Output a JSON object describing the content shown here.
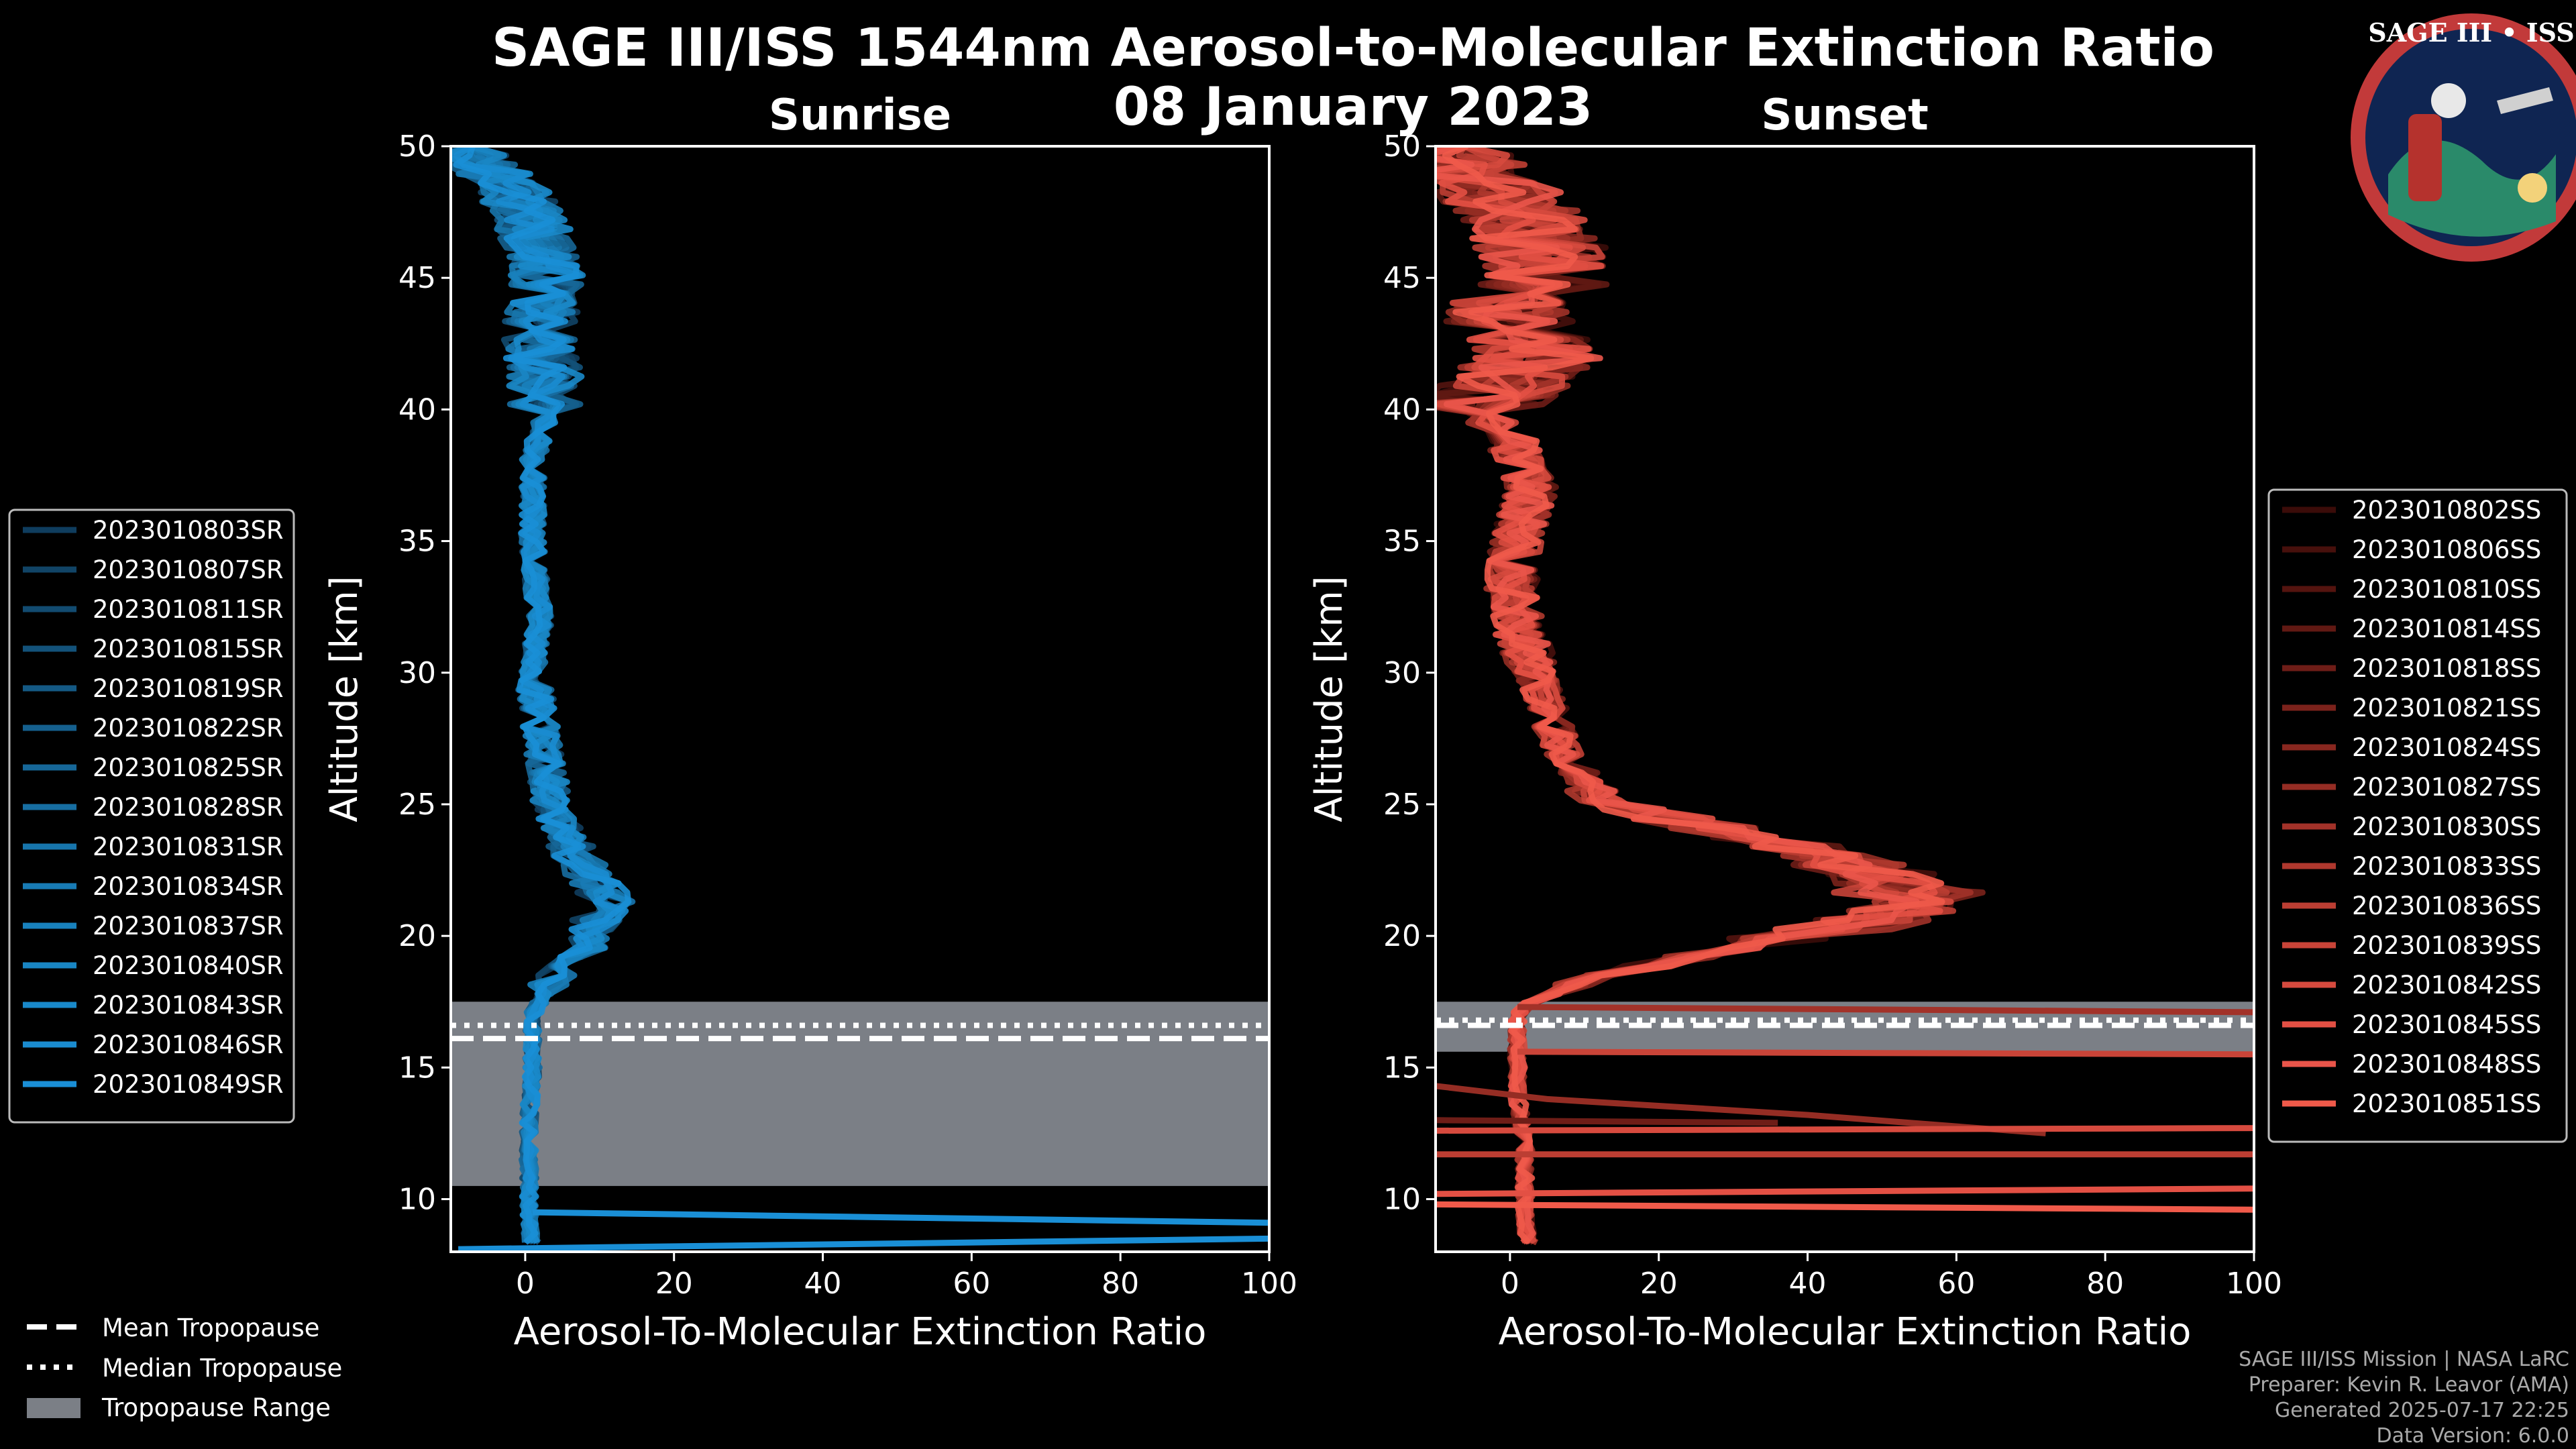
{
  "title": "SAGE III/ISS 1544nm Aerosol-to-Molecular Extinction Ratio",
  "date": "08 January 2023",
  "logo": {
    "text": "SAGE III • ISS"
  },
  "colors": {
    "background": "#000000",
    "sunrise": "#1a8fd6",
    "sunset": "#f05a4a",
    "tropopause_range": "#7b7f86",
    "credit": "#aaaaaa"
  },
  "chart_data": [
    {
      "type": "line",
      "title": "Sunrise",
      "xlabel": "Aerosol-To-Molecular Extinction Ratio",
      "ylabel": "Altitude [km]",
      "xlim": [
        -10,
        100
      ],
      "ylim": [
        8,
        50
      ],
      "xticks": [
        "0",
        "20",
        "40",
        "60",
        "80",
        "100"
      ],
      "yticks": [
        "10",
        "15",
        "20",
        "25",
        "30",
        "35",
        "40",
        "45",
        "50"
      ],
      "tropopause": {
        "mean": 16.1,
        "median": 16.6,
        "range": [
          10.5,
          17.5
        ]
      },
      "base_profile": [
        [
          -9,
          50
        ],
        [
          -2,
          48.5
        ],
        [
          1,
          47
        ],
        [
          3,
          45
        ],
        [
          2,
          43
        ],
        [
          3,
          40
        ],
        [
          1,
          38
        ],
        [
          1,
          35
        ],
        [
          2,
          32
        ],
        [
          1,
          30
        ],
        [
          2,
          28
        ],
        [
          3,
          26
        ],
        [
          4,
          24.5
        ],
        [
          7,
          23
        ],
        [
          10,
          22
        ],
        [
          12,
          21.2
        ],
        [
          9,
          20
        ],
        [
          6,
          19
        ],
        [
          3,
          18
        ],
        [
          1,
          17
        ],
        [
          1,
          16
        ],
        [
          1,
          15
        ],
        [
          0.5,
          13
        ],
        [
          0.5,
          11
        ],
        [
          0.5,
          9.6
        ],
        [
          1,
          8
        ]
      ],
      "series": [
        {
          "name": "2023010803SR",
          "color": "#0f3d5e"
        },
        {
          "name": "2023010807SR",
          "color": "#114466"
        },
        {
          "name": "2023010811SR",
          "color": "#124b70"
        },
        {
          "name": "2023010815SR",
          "color": "#13527a"
        },
        {
          "name": "2023010819SR",
          "color": "#145984"
        },
        {
          "name": "2023010822SR",
          "color": "#15608e"
        },
        {
          "name": "2023010825SR",
          "color": "#166798"
        },
        {
          "name": "2023010828SR",
          "color": "#176ea2"
        },
        {
          "name": "2023010831SR",
          "color": "#1775ac"
        },
        {
          "name": "2023010834SR",
          "color": "#187bb5"
        },
        {
          "name": "2023010837SR",
          "color": "#1881bd"
        },
        {
          "name": "2023010840SR",
          "color": "#1986c4"
        },
        {
          "name": "2023010843SR",
          "color": "#1989ca"
        },
        {
          "name": "2023010846SR",
          "color": "#1a8cd0"
        },
        {
          "name": "2023010849SR",
          "color": "#1a8fd6"
        }
      ],
      "spikes": [
        {
          "pts": [
            [
              1,
              9.5
            ],
            [
              100,
              9.1
            ]
          ],
          "color": "#1a8fd6"
        },
        {
          "pts": [
            [
              -9,
              8.1
            ],
            [
              100,
              8.5
            ]
          ],
          "color": "#1a8fd6"
        }
      ]
    },
    {
      "type": "line",
      "title": "Sunset",
      "xlabel": "Aerosol-To-Molecular Extinction Ratio",
      "ylabel": "Altitude [km]",
      "xlim": [
        -10,
        100
      ],
      "ylim": [
        8,
        50
      ],
      "xticks": [
        "0",
        "20",
        "40",
        "60",
        "80",
        "100"
      ],
      "yticks": [
        "10",
        "15",
        "20",
        "25",
        "30",
        "35",
        "40",
        "45",
        "50"
      ],
      "tropopause": {
        "mean": 16.6,
        "median": 16.8,
        "range": [
          15.6,
          17.5
        ]
      },
      "base_profile": [
        [
          -10,
          50
        ],
        [
          -2,
          48.5
        ],
        [
          3,
          47
        ],
        [
          6,
          45
        ],
        [
          -2,
          44
        ],
        [
          4,
          42
        ],
        [
          -5,
          40
        ],
        [
          0,
          39
        ],
        [
          3,
          37
        ],
        [
          1,
          35
        ],
        [
          0,
          33
        ],
        [
          2,
          31
        ],
        [
          4,
          29.5
        ],
        [
          7,
          27
        ],
        [
          13,
          25
        ],
        [
          30,
          24
        ],
        [
          45,
          23
        ],
        [
          53,
          22
        ],
        [
          57,
          21.5
        ],
        [
          49,
          20.5
        ],
        [
          30,
          19.5
        ],
        [
          12,
          18.5
        ],
        [
          3,
          17.5
        ],
        [
          1,
          17
        ],
        [
          1,
          15.5
        ],
        [
          1,
          14
        ],
        [
          2,
          12
        ],
        [
          2,
          10.5
        ],
        [
          2,
          9
        ],
        [
          3,
          8
        ]
      ],
      "series": [
        {
          "name": "2023010802SS",
          "color": "#3b0c09"
        },
        {
          "name": "2023010806SS",
          "color": "#47100c"
        },
        {
          "name": "2023010810SS",
          "color": "#54140f"
        },
        {
          "name": "2023010814SS",
          "color": "#611913"
        },
        {
          "name": "2023010818SS",
          "color": "#6e1d17"
        },
        {
          "name": "2023010821SS",
          "color": "#7b221b"
        },
        {
          "name": "2023010824SS",
          "color": "#88271f"
        },
        {
          "name": "2023010827SS",
          "color": "#952d24"
        },
        {
          "name": "2023010830SS",
          "color": "#a23229"
        },
        {
          "name": "2023010833SS",
          "color": "#af382e"
        },
        {
          "name": "2023010836SS",
          "color": "#bc3e33"
        },
        {
          "name": "2023010839SS",
          "color": "#c94438"
        },
        {
          "name": "2023010842SS",
          "color": "#d64a3e"
        },
        {
          "name": "2023010845SS",
          "color": "#e35044"
        },
        {
          "name": "2023010848SS",
          "color": "#ea554a"
        },
        {
          "name": "2023010851SS",
          "color": "#f05a4a"
        }
      ],
      "spikes": [
        {
          "pts": [
            [
              1,
              17.3
            ],
            [
              100,
              17.1
            ]
          ],
          "color": "#a23229"
        },
        {
          "pts": [
            [
              1,
              15.6
            ],
            [
              100,
              15.5
            ]
          ],
          "color": "#c94438"
        },
        {
          "pts": [
            [
              -10,
              14.3
            ],
            [
              5,
              13.8
            ],
            [
              40,
              13.2
            ],
            [
              72,
              12.5
            ]
          ],
          "color": "#952d24"
        },
        {
          "pts": [
            [
              -10,
              13.0
            ],
            [
              36,
              12.9
            ]
          ],
          "color": "#6e1d17"
        },
        {
          "pts": [
            [
              -10,
              12.6
            ],
            [
              100,
              12.7
            ]
          ],
          "color": "#d64a3e"
        },
        {
          "pts": [
            [
              -10,
              11.7
            ],
            [
              100,
              11.7
            ]
          ],
          "color": "#bc3e33"
        },
        {
          "pts": [
            [
              -10,
              10.2
            ],
            [
              100,
              10.4
            ]
          ],
          "color": "#e35044"
        },
        {
          "pts": [
            [
              -10,
              9.8
            ],
            [
              100,
              9.6
            ]
          ],
          "color": "#f05a4a"
        }
      ]
    }
  ],
  "bottom_legend": {
    "mean": "Mean Tropopause",
    "median": "Median Tropopause",
    "range": "Tropopause Range"
  },
  "credits": [
    "SAGE III/ISS Mission | NASA LaRC",
    "Preparer: Kevin R. Leavor (AMA)",
    "Generated 2025-07-17 22:25",
    "Data Version: 6.0.0"
  ]
}
